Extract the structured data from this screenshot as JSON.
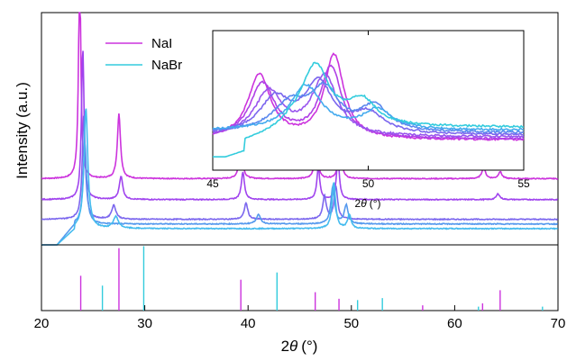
{
  "chart_data": {
    "type": "line",
    "xlabel": "2θ (°)",
    "xlabel_prefix": "2",
    "xlabel_var": "θ",
    "xlabel_unit": "(°)",
    "ylabel": "Intensity (a.u.)",
    "xlim": [
      20,
      70
    ],
    "xticks": [
      "20",
      "30",
      "40",
      "50",
      "60",
      "70"
    ],
    "legend": {
      "placement": "top-left of main panel",
      "entries": [
        {
          "name": "NaI",
          "color": "#cc33dd"
        },
        {
          "name": "NaBr",
          "color": "#33ccdd"
        }
      ]
    },
    "main_series": [
      {
        "color": "#cc33dd",
        "baseline": 0.285,
        "noise": 0.004,
        "peaks": [
          [
            23.7,
            0.95,
            0.13
          ],
          [
            27.5,
            0.28,
            0.18
          ],
          [
            39.3,
            0.2,
            0.16
          ],
          [
            46.6,
            0.19,
            0.16
          ],
          [
            48.9,
            0.22,
            0.15
          ],
          [
            62.8,
            0.05,
            0.2
          ],
          [
            64.4,
            0.03,
            0.2
          ]
        ]
      },
      {
        "color": "#a044ee",
        "baseline": 0.195,
        "noise": 0.004,
        "peaks": [
          [
            24.0,
            0.65,
            0.15
          ],
          [
            27.7,
            0.1,
            0.2
          ],
          [
            39.5,
            0.12,
            0.18
          ],
          [
            46.8,
            0.14,
            0.17
          ],
          [
            48.7,
            0.18,
            0.17
          ],
          [
            64.2,
            0.025,
            0.2
          ]
        ]
      },
      {
        "color": "#7b66ee",
        "baseline": 0.11,
        "noise": 0.004,
        "peaks": [
          [
            24.1,
            0.45,
            0.18
          ],
          [
            27.0,
            0.06,
            0.25
          ],
          [
            39.8,
            0.07,
            0.2
          ],
          [
            47.4,
            0.1,
            0.2
          ],
          [
            48.5,
            0.14,
            0.2
          ]
        ]
      },
      {
        "color": "#5599ee",
        "baseline": 0.09,
        "noise": 0.004,
        "peaks": [
          [
            24.2,
            0.35,
            0.2
          ],
          [
            41.0,
            0.04,
            0.25
          ],
          [
            48.2,
            0.16,
            0.22
          ],
          [
            49.5,
            0.08,
            0.22
          ]
        ]
      },
      {
        "color": "#44bbee",
        "baseline": 0.07,
        "noise": 0.004,
        "peaks": [
          [
            24.3,
            0.52,
            0.22
          ],
          [
            27.2,
            0.05,
            0.3
          ],
          [
            48.3,
            0.2,
            0.2
          ],
          [
            49.8,
            0.06,
            0.2
          ]
        ]
      }
    ],
    "reference_sticks": {
      "NaI": [
        [
          23.8,
          0.53
        ],
        [
          27.5,
          0.95
        ],
        [
          39.3,
          0.47
        ],
        [
          46.5,
          0.28
        ],
        [
          48.8,
          0.18
        ],
        [
          56.9,
          0.08
        ],
        [
          62.7,
          0.11
        ],
        [
          64.4,
          0.31
        ]
      ],
      "NaBr": [
        [
          25.9,
          0.38
        ],
        [
          29.9,
          0.98
        ],
        [
          42.8,
          0.58
        ],
        [
          50.6,
          0.16
        ],
        [
          53.0,
          0.19
        ],
        [
          62.3,
          0.06
        ],
        [
          68.5,
          0.06
        ]
      ]
    },
    "inset": {
      "xlim": [
        45,
        55
      ],
      "xticks": [
        "45",
        "50",
        "55"
      ],
      "xlabel": "2θ (°)",
      "xlabel_prefix": "2",
      "xlabel_var": "θ",
      "xlabel_unit": "(°)",
      "series": [
        {
          "color": "#cc33dd",
          "baseline": 0.05,
          "peaks": [
            [
              46.5,
              0.65,
              0.45
            ],
            [
              48.9,
              0.85,
              0.38
            ]
          ]
        },
        {
          "color": "#b040e6",
          "baseline": 0.06,
          "peaks": [
            [
              46.6,
              0.55,
              0.5
            ],
            [
              48.8,
              0.72,
              0.42
            ]
          ]
        },
        {
          "color": "#9955ee",
          "baseline": 0.08,
          "peaks": [
            [
              46.8,
              0.45,
              0.55
            ],
            [
              48.6,
              0.6,
              0.5
            ]
          ]
        },
        {
          "color": "#7b66ee",
          "baseline": 0.1,
          "peaks": [
            [
              47.0,
              0.35,
              0.6
            ],
            [
              48.4,
              0.5,
              0.55
            ],
            [
              50.0,
              0.2,
              0.6
            ]
          ]
        },
        {
          "color": "#5a88ee",
          "baseline": 0.12,
          "peaks": [
            [
              47.5,
              0.28,
              0.7
            ],
            [
              48.6,
              0.4,
              0.55
            ],
            [
              50.2,
              0.25,
              0.55
            ]
          ]
        },
        {
          "color": "#44aaee",
          "baseline": 0.15,
          "peaks": [
            [
              48.0,
              0.45,
              0.6
            ],
            [
              50.3,
              0.2,
              0.55
            ]
          ]
        },
        {
          "color": "#33ccdd",
          "baseline": 0.18,
          "peaks": [
            [
              48.3,
              0.62,
              0.55
            ],
            [
              49.8,
              0.25,
              0.55
            ]
          ],
          "rise": true
        }
      ]
    }
  }
}
